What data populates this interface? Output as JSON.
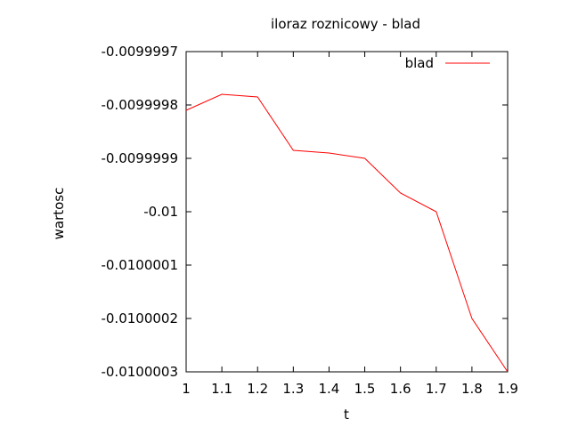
{
  "chart_data": {
    "type": "line",
    "title": "iloraz roznicowy - blad",
    "xlabel": "t",
    "ylabel": "wartosc",
    "xlim": [
      1,
      1.9
    ],
    "ylim": [
      -0.0100003,
      -0.0099997
    ],
    "x_ticks": [
      "1",
      "1.1",
      "1.2",
      "1.3",
      "1.4",
      "1.5",
      "1.6",
      "1.7",
      "1.8",
      "1.9"
    ],
    "y_ticks": [
      "-0.0099997",
      "-0.0099998",
      "-0.0099999",
      "-0.01",
      "-0.0100001",
      "-0.0100002",
      "-0.0100003"
    ],
    "grid": false,
    "legend_position": "top-right",
    "series": [
      {
        "name": "blad",
        "color": "#ff0000",
        "x": [
          1.0,
          1.1,
          1.2,
          1.3,
          1.4,
          1.5,
          1.6,
          1.7,
          1.8,
          1.9
        ],
        "y": [
          -0.00999981,
          -0.00999978,
          -0.009999785,
          -0.009999885,
          -0.00999989,
          -0.0099999,
          -0.009999965,
          -0.01,
          -0.0100002,
          -0.0100003
        ]
      }
    ]
  }
}
